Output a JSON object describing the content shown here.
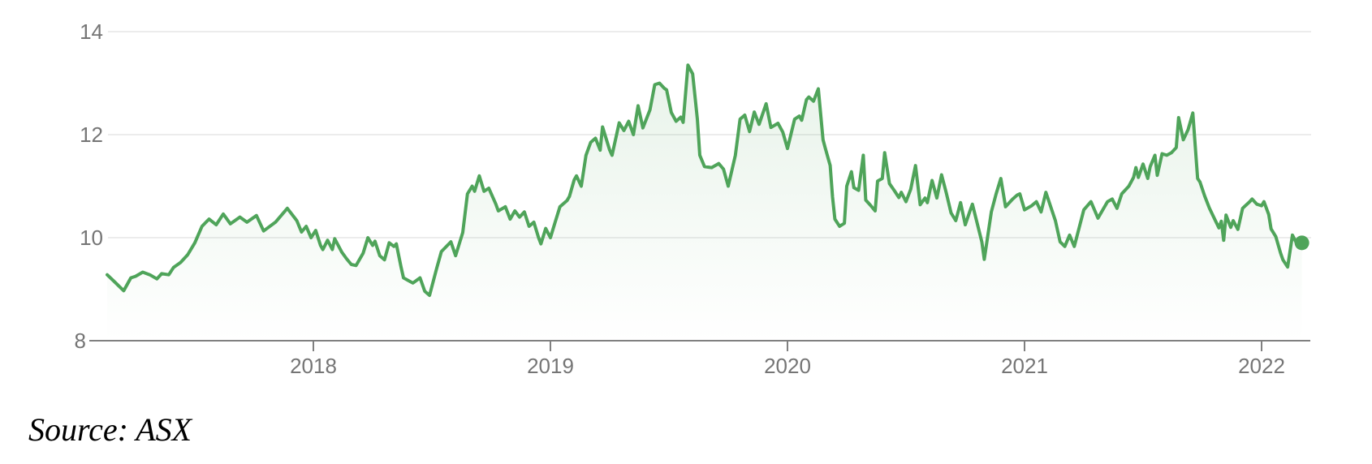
{
  "footer": {
    "source_note": "Source: ASX"
  },
  "chart_data": {
    "type": "area",
    "title": "",
    "xlabel": "",
    "ylabel": "",
    "legend": "none",
    "grid": "horizontal-light",
    "x_axis": {
      "ticks": [
        2018,
        2019,
        2020,
        2021,
        2022
      ],
      "range": [
        2017.1,
        2022.3
      ]
    },
    "y_axis": {
      "ticks": [
        8,
        10,
        12,
        14
      ],
      "range": [
        8,
        14
      ]
    },
    "colors": {
      "line": "#4FA45A",
      "fill_top": "rgba(79,164,90,0.15)",
      "fill_bottom": "rgba(79,164,90,0)",
      "axis": "#808080",
      "gridline": "#ececec",
      "tick_label": "#757575",
      "end_dot": "#4FA45A"
    },
    "end_marker_value": 9.9,
    "points": [
      [
        2017.13,
        9.28
      ],
      [
        2017.16,
        9.15
      ],
      [
        2017.2,
        8.97
      ],
      [
        2017.23,
        9.22
      ],
      [
        2017.25,
        9.25
      ],
      [
        2017.28,
        9.33
      ],
      [
        2017.31,
        9.28
      ],
      [
        2017.34,
        9.2
      ],
      [
        2017.36,
        9.3
      ],
      [
        2017.39,
        9.28
      ],
      [
        2017.41,
        9.42
      ],
      [
        2017.44,
        9.52
      ],
      [
        2017.47,
        9.67
      ],
      [
        2017.5,
        9.9
      ],
      [
        2017.53,
        10.22
      ],
      [
        2017.56,
        10.36
      ],
      [
        2017.59,
        10.25
      ],
      [
        2017.62,
        10.46
      ],
      [
        2017.65,
        10.27
      ],
      [
        2017.69,
        10.4
      ],
      [
        2017.72,
        10.3
      ],
      [
        2017.76,
        10.43
      ],
      [
        2017.79,
        10.13
      ],
      [
        2017.84,
        10.3
      ],
      [
        2017.89,
        10.57
      ],
      [
        2017.93,
        10.33
      ],
      [
        2017.95,
        10.11
      ],
      [
        2017.97,
        10.22
      ],
      [
        2017.99,
        10.0
      ],
      [
        2018.01,
        10.14
      ],
      [
        2018.03,
        9.85
      ],
      [
        2018.04,
        9.77
      ],
      [
        2018.06,
        9.95
      ],
      [
        2018.08,
        9.77
      ],
      [
        2018.09,
        9.98
      ],
      [
        2018.12,
        9.72
      ],
      [
        2018.14,
        9.59
      ],
      [
        2018.16,
        9.48
      ],
      [
        2018.18,
        9.46
      ],
      [
        2018.21,
        9.7
      ],
      [
        2018.23,
        10.0
      ],
      [
        2018.25,
        9.85
      ],
      [
        2018.26,
        9.93
      ],
      [
        2018.28,
        9.65
      ],
      [
        2018.3,
        9.57
      ],
      [
        2018.32,
        9.9
      ],
      [
        2018.34,
        9.83
      ],
      [
        2018.35,
        9.88
      ],
      [
        2018.37,
        9.43
      ],
      [
        2018.38,
        9.22
      ],
      [
        2018.4,
        9.17
      ],
      [
        2018.42,
        9.12
      ],
      [
        2018.45,
        9.22
      ],
      [
        2018.47,
        8.96
      ],
      [
        2018.49,
        8.88
      ],
      [
        2018.52,
        9.4
      ],
      [
        2018.54,
        9.73
      ],
      [
        2018.58,
        9.92
      ],
      [
        2018.6,
        9.65
      ],
      [
        2018.63,
        10.1
      ],
      [
        2018.65,
        10.85
      ],
      [
        2018.67,
        11.0
      ],
      [
        2018.68,
        10.9
      ],
      [
        2018.7,
        11.2
      ],
      [
        2018.72,
        10.9
      ],
      [
        2018.74,
        10.96
      ],
      [
        2018.77,
        10.65
      ],
      [
        2018.78,
        10.52
      ],
      [
        2018.81,
        10.6
      ],
      [
        2018.83,
        10.36
      ],
      [
        2018.85,
        10.52
      ],
      [
        2018.87,
        10.4
      ],
      [
        2018.89,
        10.5
      ],
      [
        2018.91,
        10.22
      ],
      [
        2018.93,
        10.3
      ],
      [
        2018.95,
        10.0
      ],
      [
        2018.96,
        9.88
      ],
      [
        2018.98,
        10.18
      ],
      [
        2019.0,
        10.0
      ],
      [
        2019.02,
        10.3
      ],
      [
        2019.04,
        10.6
      ],
      [
        2019.07,
        10.72
      ],
      [
        2019.08,
        10.8
      ],
      [
        2019.1,
        11.12
      ],
      [
        2019.11,
        11.2
      ],
      [
        2019.13,
        11.0
      ],
      [
        2019.15,
        11.6
      ],
      [
        2019.17,
        11.85
      ],
      [
        2019.19,
        11.93
      ],
      [
        2019.21,
        11.7
      ],
      [
        2019.22,
        12.15
      ],
      [
        2019.25,
        11.7
      ],
      [
        2019.26,
        11.6
      ],
      [
        2019.29,
        12.23
      ],
      [
        2019.31,
        12.08
      ],
      [
        2019.33,
        12.26
      ],
      [
        2019.35,
        12.0
      ],
      [
        2019.37,
        12.56
      ],
      [
        2019.39,
        12.13
      ],
      [
        2019.42,
        12.48
      ],
      [
        2019.44,
        12.97
      ],
      [
        2019.46,
        13.0
      ],
      [
        2019.48,
        12.9
      ],
      [
        2019.49,
        12.87
      ],
      [
        2019.51,
        12.43
      ],
      [
        2019.53,
        12.26
      ],
      [
        2019.55,
        12.34
      ],
      [
        2019.56,
        12.24
      ],
      [
        2019.58,
        13.35
      ],
      [
        2019.6,
        13.18
      ],
      [
        2019.62,
        12.3
      ],
      [
        2019.63,
        11.6
      ],
      [
        2019.65,
        11.38
      ],
      [
        2019.68,
        11.36
      ],
      [
        2019.71,
        11.44
      ],
      [
        2019.73,
        11.33
      ],
      [
        2019.75,
        11.0
      ],
      [
        2019.78,
        11.6
      ],
      [
        2019.8,
        12.3
      ],
      [
        2019.82,
        12.38
      ],
      [
        2019.84,
        12.06
      ],
      [
        2019.86,
        12.44
      ],
      [
        2019.88,
        12.2
      ],
      [
        2019.91,
        12.6
      ],
      [
        2019.93,
        12.14
      ],
      [
        2019.96,
        12.22
      ],
      [
        2019.98,
        12.05
      ],
      [
        2020.0,
        11.73
      ],
      [
        2020.03,
        12.3
      ],
      [
        2020.05,
        12.36
      ],
      [
        2020.06,
        12.28
      ],
      [
        2020.08,
        12.68
      ],
      [
        2020.09,
        12.73
      ],
      [
        2020.11,
        12.65
      ],
      [
        2020.13,
        12.89
      ],
      [
        2020.15,
        11.9
      ],
      [
        2020.16,
        11.73
      ],
      [
        2020.18,
        11.4
      ],
      [
        2020.19,
        10.79
      ],
      [
        2020.2,
        10.36
      ],
      [
        2020.22,
        10.22
      ],
      [
        2020.24,
        10.28
      ],
      [
        2020.25,
        11.0
      ],
      [
        2020.27,
        11.28
      ],
      [
        2020.28,
        10.97
      ],
      [
        2020.3,
        10.92
      ],
      [
        2020.32,
        11.6
      ],
      [
        2020.33,
        10.73
      ],
      [
        2020.35,
        10.63
      ],
      [
        2020.37,
        10.52
      ],
      [
        2020.38,
        11.1
      ],
      [
        2020.4,
        11.15
      ],
      [
        2020.41,
        11.65
      ],
      [
        2020.43,
        11.05
      ],
      [
        2020.45,
        10.92
      ],
      [
        2020.47,
        10.78
      ],
      [
        2020.48,
        10.88
      ],
      [
        2020.5,
        10.7
      ],
      [
        2020.52,
        10.94
      ],
      [
        2020.54,
        11.4
      ],
      [
        2020.56,
        10.64
      ],
      [
        2020.58,
        10.77
      ],
      [
        2020.59,
        10.68
      ],
      [
        2020.61,
        11.11
      ],
      [
        2020.63,
        10.77
      ],
      [
        2020.65,
        11.22
      ],
      [
        2020.67,
        10.87
      ],
      [
        2020.69,
        10.48
      ],
      [
        2020.71,
        10.33
      ],
      [
        2020.73,
        10.68
      ],
      [
        2020.75,
        10.25
      ],
      [
        2020.77,
        10.52
      ],
      [
        2020.78,
        10.65
      ],
      [
        2020.82,
        9.92
      ],
      [
        2020.83,
        9.58
      ],
      [
        2020.86,
        10.5
      ],
      [
        2020.88,
        10.85
      ],
      [
        2020.9,
        11.15
      ],
      [
        2020.92,
        10.6
      ],
      [
        2020.95,
        10.75
      ],
      [
        2020.97,
        10.83
      ],
      [
        2020.98,
        10.85
      ],
      [
        2021.0,
        10.54
      ],
      [
        2021.03,
        10.62
      ],
      [
        2021.05,
        10.7
      ],
      [
        2021.07,
        10.5
      ],
      [
        2021.09,
        10.88
      ],
      [
        2021.13,
        10.33
      ],
      [
        2021.15,
        9.92
      ],
      [
        2021.17,
        9.83
      ],
      [
        2021.19,
        10.05
      ],
      [
        2021.21,
        9.83
      ],
      [
        2021.25,
        10.54
      ],
      [
        2021.28,
        10.7
      ],
      [
        2021.31,
        10.38
      ],
      [
        2021.35,
        10.7
      ],
      [
        2021.37,
        10.75
      ],
      [
        2021.39,
        10.57
      ],
      [
        2021.41,
        10.85
      ],
      [
        2021.44,
        11.0
      ],
      [
        2021.46,
        11.17
      ],
      [
        2021.47,
        11.36
      ],
      [
        2021.48,
        11.17
      ],
      [
        2021.5,
        11.43
      ],
      [
        2021.52,
        11.15
      ],
      [
        2021.53,
        11.38
      ],
      [
        2021.55,
        11.6
      ],
      [
        2021.56,
        11.21
      ],
      [
        2021.58,
        11.63
      ],
      [
        2021.6,
        11.6
      ],
      [
        2021.62,
        11.65
      ],
      [
        2021.64,
        11.75
      ],
      [
        2021.65,
        12.33
      ],
      [
        2021.67,
        11.9
      ],
      [
        2021.69,
        12.1
      ],
      [
        2021.71,
        12.42
      ],
      [
        2021.73,
        11.15
      ],
      [
        2021.74,
        11.08
      ],
      [
        2021.76,
        10.81
      ],
      [
        2021.78,
        10.57
      ],
      [
        2021.8,
        10.38
      ],
      [
        2021.82,
        10.19
      ],
      [
        2021.83,
        10.32
      ],
      [
        2021.84,
        9.95
      ],
      [
        2021.85,
        10.44
      ],
      [
        2021.87,
        10.2
      ],
      [
        2021.88,
        10.33
      ],
      [
        2021.9,
        10.16
      ],
      [
        2021.92,
        10.57
      ],
      [
        2021.95,
        10.7
      ],
      [
        2021.96,
        10.75
      ],
      [
        2021.98,
        10.65
      ],
      [
        2022.0,
        10.62
      ],
      [
        2022.01,
        10.7
      ],
      [
        2022.03,
        10.45
      ],
      [
        2022.04,
        10.17
      ],
      [
        2022.06,
        10.02
      ],
      [
        2022.08,
        9.7
      ],
      [
        2022.09,
        9.57
      ],
      [
        2022.11,
        9.43
      ],
      [
        2022.13,
        10.05
      ],
      [
        2022.15,
        9.87
      ],
      [
        2022.17,
        9.9
      ]
    ]
  }
}
